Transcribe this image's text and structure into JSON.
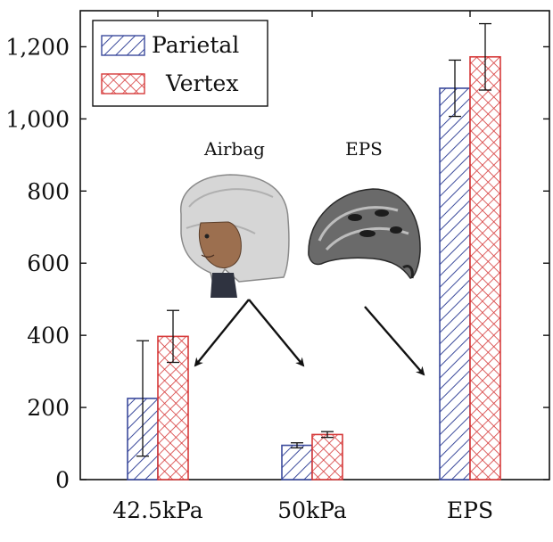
{
  "chart_data": {
    "type": "bar",
    "categories": [
      "42.5kPa",
      "50kPa",
      "EPS"
    ],
    "series": [
      {
        "name": "Parietal",
        "values": [
          225,
          95,
          1085
        ],
        "errors": [
          160,
          7,
          78
        ],
        "color": "#3b4a9c",
        "pattern": "diagonal-hatch"
      },
      {
        "name": "Vertex",
        "values": [
          397,
          125,
          1172
        ],
        "errors": [
          72,
          8,
          92
        ],
        "color": "#d63a3a",
        "pattern": "crosshatch"
      }
    ],
    "ylim": [
      0,
      1300
    ],
    "yticks": [
      0,
      200,
      400,
      600,
      800,
      1000,
      1200
    ],
    "ytick_labels": [
      "0",
      "200",
      "400",
      "600",
      "800",
      "1,000",
      "1,200"
    ],
    "legend_position": "top-left",
    "grid": false,
    "annotations": [
      {
        "text": "Airbag",
        "icon": "airbag-helmet-icon",
        "points_to": [
          "42.5kPa",
          "50kPa"
        ]
      },
      {
        "text": "EPS",
        "icon": "eps-helmet-icon",
        "points_to": [
          "EPS"
        ]
      }
    ]
  }
}
